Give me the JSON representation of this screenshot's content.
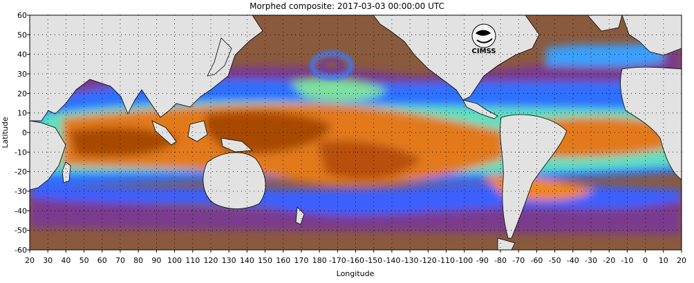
{
  "title": "Morphed composite: 2017-03-03 00:00:00 UTC",
  "logo_text": "CIMSS",
  "axes": {
    "xlabel": "Longitude",
    "ylabel": "Latitude",
    "x_ticks": [
      "20",
      "30",
      "40",
      "50",
      "60",
      "70",
      "80",
      "90",
      "100",
      "110",
      "120",
      "130",
      "140",
      "150",
      "160",
      "170",
      "180",
      "-170",
      "-160",
      "-150",
      "-140",
      "-130",
      "-120",
      "-110",
      "-100",
      "-90",
      "-80",
      "-70",
      "-60",
      "-50",
      "-40",
      "-30",
      "-20",
      "-10",
      "0",
      "10",
      "20"
    ],
    "y_ticks": [
      "60",
      "50",
      "40",
      "30",
      "20",
      "10",
      "0",
      "-10",
      "-20",
      "-30",
      "-40",
      "-50",
      "-60"
    ],
    "grid": "dotted"
  },
  "colors": {
    "land": "#e2e2e2",
    "dry_brown": "#8a5a3e",
    "very_dry_purple": "#6a2a8a",
    "blue": "#2f6fff",
    "cyan": "#40e0e0",
    "green": "#9ee66a",
    "orange": "#e27a1a",
    "dark_orange": "#a84800",
    "coast": "#000000"
  }
}
